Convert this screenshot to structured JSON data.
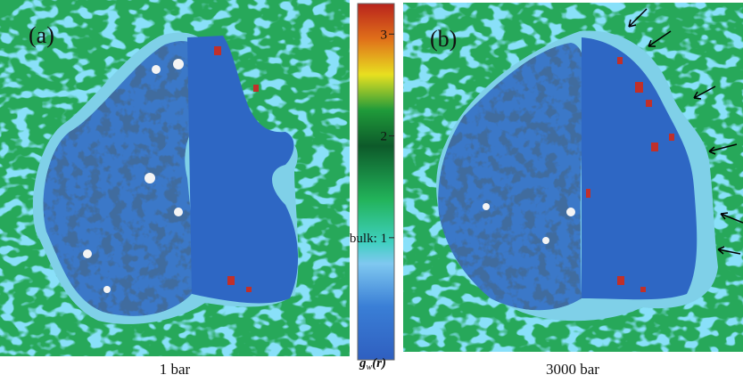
{
  "panels": [
    {
      "label": "(a)",
      "caption": "1 bar"
    },
    {
      "label": "(b)",
      "caption": "3000 bar"
    }
  ],
  "colorbar": {
    "title": {
      "symbol": "g",
      "subscript": "w",
      "argument": "(r)"
    },
    "lim": [
      -0.2,
      3.3
    ],
    "ticks": [
      {
        "value": 1,
        "label": "bulk: 1"
      },
      2,
      3
    ]
  }
}
